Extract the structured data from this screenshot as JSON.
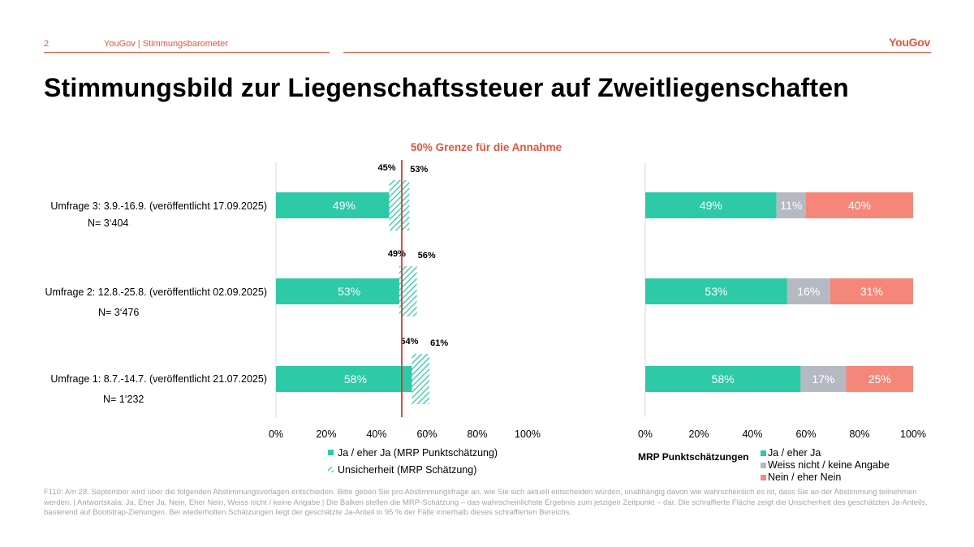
{
  "header": {
    "page_number": "2",
    "source": "YouGov | Stimmungsbarometer",
    "logo": "YouGov",
    "accent_color": "#e8533c"
  },
  "title": "Stimmungsbild zur Liegenschaftssteuer auf Zweitliegenschaften",
  "threshold_label": "50% Grenze für die Annahme",
  "surveys": [
    {
      "label": "Umfrage 3: 3.9.-16.9. (veröffentlicht 17.09.2025)",
      "n": "N= 3‘404"
    },
    {
      "label": "Umfrage 2: 12.8.-25.8. (veröffentlicht 02.09.2025)",
      "n": "N= 3‘476"
    },
    {
      "label": "Umfrage 1: 8.7.-14.7. (veröffentlicht 21.07.2025)",
      "n": "N= 1‘232"
    }
  ],
  "chart_data": [
    {
      "type": "bar",
      "orientation": "horizontal",
      "categories": [
        "Umfrage 3",
        "Umfrage 2",
        "Umfrage 1"
      ],
      "values": [
        49,
        53,
        58
      ],
      "value_labels": [
        "49%",
        "53%",
        "58%"
      ],
      "uncertainty": [
        {
          "low": 45,
          "high": 53,
          "low_label": "45%",
          "high_label": "53%"
        },
        {
          "low": 49,
          "high": 56,
          "low_label": "49%",
          "high_label": "56%"
        },
        {
          "low": 54,
          "high": 61,
          "low_label": "54%",
          "high_label": "61%"
        }
      ],
      "threshold": 50,
      "xlim": [
        0,
        100
      ],
      "ticks": [
        "0%",
        "20%",
        "40%",
        "60%",
        "80%",
        "100%"
      ],
      "legend": [
        "Ja / eher Ja (MRP Punktschätzung)",
        "Unsicherheit (MRP Schätzung)"
      ],
      "colors": {
        "bar": "#2ec9a7",
        "threshold": "#d93a2b"
      }
    },
    {
      "type": "bar",
      "orientation": "horizontal",
      "stacked": true,
      "categories": [
        "Umfrage 3",
        "Umfrage 2",
        "Umfrage 1"
      ],
      "series": [
        {
          "name": "Ja / eher Ja",
          "values": [
            49,
            53,
            58
          ],
          "labels": [
            "49%",
            "53%",
            "58%"
          ],
          "color": "#2ec9a7"
        },
        {
          "name": "Weiss nicht / keine Angabe",
          "values": [
            11,
            16,
            17
          ],
          "labels": [
            "11%",
            "16%",
            "17%"
          ],
          "color": "#b5b9c2"
        },
        {
          "name": "Nein / eher Nein",
          "values": [
            40,
            31,
            25
          ],
          "labels": [
            "40%",
            "31%",
            "25%"
          ],
          "color": "#f5877a"
        }
      ],
      "xlim": [
        0,
        100
      ],
      "ticks": [
        "0%",
        "20%",
        "40%",
        "60%",
        "80%",
        "100%"
      ],
      "legend_title": "MRP Punktschätzungen"
    }
  ],
  "footnote": "F110: Am 28. September wird über die folgenden Abstimmungsvorlagen entschieden. Bitte geben Sie pro Abstimmungsfrage an, wie Sie sich aktuell entscheiden würden, unabhängig davon wie wahrscheinlich es ist, dass Sie an der Abstimmung teilnehmen werden. | Antwortskala: Ja, Eher Ja, Nein, Eher Nein, Weiss nicht / keine Angabe | Die Balken stellen die MRP-Schätzung – das wahrscheinlichste Ergebnis zum jetzigen Zeitpunkt – dar. Die schraffierte Fläche zeigt die Unsicherheit des geschätzten Ja-Anteils, basierend auf Bootstrap-Ziehungen. Bei wiederholten Schätzungen liegt der geschätzte Ja-Anteil in 95 % der Fälle innerhalb dieses schraffierten Bereichs."
}
